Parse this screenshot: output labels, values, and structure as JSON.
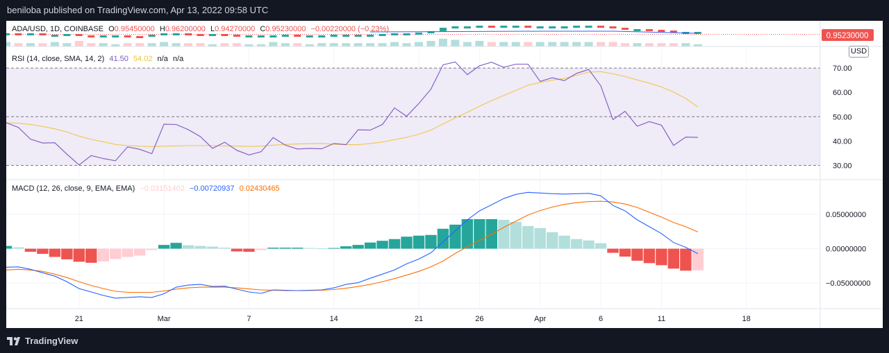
{
  "header": {
    "published": "beniloba published on TradingView.com, Apr 13, 2022 09:58 UTC"
  },
  "footer": {
    "brand": "TradingView"
  },
  "price_pane": {
    "legend": {
      "symbol": "ADA/USD, 1D, COINBASE",
      "open_label": "O",
      "open": "0.95450000",
      "high_label": "H",
      "high": "0.96200000",
      "low_label": "L",
      "low": "0.94270000",
      "close_label": "C",
      "close": "0.95230000",
      "change": "−0.00220000 (−0.23%)"
    },
    "currency": "USD",
    "price_tag": "0.95230000"
  },
  "rsi_pane": {
    "legend": {
      "title": "RSI (14, close, SMA, 14, 2)",
      "rsi": "41.50",
      "sma": "54.02",
      "na1": "n/a",
      "na2": "n/a"
    }
  },
  "macd_pane": {
    "legend": {
      "title": "MACD (12, 26, close, 9, EMA, EMA)",
      "hist": "−0.03151402",
      "macd": "−0.00720937",
      "signal": "0.02430465"
    }
  },
  "colors": {
    "up": "#26a69a",
    "up_light": "#b2dfdb",
    "down": "#ef5350",
    "down_light": "#ffcdd2",
    "rsi": "#7e57c2",
    "rsi_sma": "#f7d163",
    "rsi_band": "#efebf7",
    "macd": "#2962ff",
    "signal": "#ff6d00",
    "text": "#131722"
  },
  "chart_data": [
    {
      "type": "line",
      "title": "RSI (14, close, SMA, 14, 2)",
      "ylim": [
        25,
        78
      ],
      "y_ticks": [
        "70.00",
        "60.00",
        "50.00",
        "40.00",
        "30.00"
      ],
      "bands": [
        30,
        50,
        70
      ],
      "x_tick_labels": [
        "21",
        "Mar",
        "7",
        "14",
        "21",
        "26",
        "Apr",
        "6",
        "11",
        "18"
      ],
      "series": [
        {
          "name": "RSI",
          "values": [
            47.5,
            45.6,
            40.8,
            39.2,
            39.3,
            34.6,
            30.2,
            34.0,
            32.8,
            31.9,
            37.6,
            36.6,
            34.8,
            46.9,
            46.8,
            44.7,
            41.8,
            37.0,
            39.5,
            36.2,
            34.3,
            35.6,
            41.4,
            38.3,
            36.7,
            37.0,
            36.8,
            39.0,
            38.5,
            44.6,
            44.5,
            46.8,
            53.6,
            50.2,
            55.4,
            61.3,
            71.3,
            72.5,
            67.3,
            70.9,
            72.4,
            70.3,
            71.6,
            71.6,
            64.5,
            66.0,
            64.8,
            67.8,
            69.4,
            62.7,
            48.8,
            52.2,
            46.1,
            48.0,
            46.5,
            38.2,
            41.6,
            41.5
          ]
        },
        {
          "name": "SMA",
          "values": [
            47.5,
            47.3,
            46.8,
            46.0,
            45.0,
            43.7,
            42.0,
            40.7,
            39.7,
            38.6,
            38.1,
            37.9,
            37.7,
            37.9,
            38.0,
            38.1,
            38.1,
            38.1,
            38.0,
            37.9,
            37.8,
            37.9,
            38.3,
            38.6,
            38.8,
            38.9,
            39.0,
            38.7,
            38.5,
            38.5,
            39.0,
            39.6,
            40.6,
            41.5,
            42.8,
            44.5,
            47.0,
            49.5,
            51.8,
            54.3,
            56.6,
            58.7,
            60.8,
            62.9,
            64.1,
            65.0,
            65.7,
            67.0,
            68.3,
            68.5,
            67.6,
            66.5,
            65.1,
            63.8,
            62.2,
            60.1,
            57.5,
            54.0
          ]
        }
      ]
    },
    {
      "type": "bar",
      "title": "MACD (12, 26, close, 9, EMA, EMA)",
      "ylim": [
        -0.0862,
        0.0995
      ],
      "y_ticks": [
        "0.05000000",
        "0.00000000",
        "−0.05000000"
      ],
      "x_tick_labels": [
        "21",
        "Mar",
        "7",
        "14",
        "21",
        "26",
        "Apr",
        "6",
        "11",
        "18"
      ],
      "series": [
        {
          "name": "Histogram",
          "values": [
            0.004,
            0.002,
            -0.0045,
            -0.0075,
            -0.012,
            -0.0155,
            -0.019,
            -0.0205,
            -0.0185,
            -0.015,
            -0.012,
            -0.01,
            -0.002,
            0.0055,
            0.0085,
            0.005,
            0.004,
            0.003,
            0.0015,
            -0.004,
            -0.0045,
            -0.002,
            0.0015,
            0.0015,
            0.0015,
            0.001,
            0.0005,
            0.001,
            0.0035,
            0.0055,
            0.009,
            0.0115,
            0.014,
            0.0175,
            0.019,
            0.02,
            0.029,
            0.035,
            0.043,
            0.043,
            0.043,
            0.042,
            0.039,
            0.033,
            0.03,
            0.024,
            0.019,
            0.014,
            0.012,
            0.008,
            -0.006,
            -0.0115,
            -0.0175,
            -0.021,
            -0.024,
            -0.029,
            -0.032,
            -0.0315
          ]
        },
        {
          "name": "MACD",
          "values": [
            -0.027,
            -0.0265,
            -0.03,
            -0.035,
            -0.04,
            -0.048,
            -0.058,
            -0.063,
            -0.068,
            -0.072,
            -0.071,
            -0.07,
            -0.071,
            -0.0655,
            -0.056,
            -0.053,
            -0.052,
            -0.055,
            -0.0545,
            -0.059,
            -0.063,
            -0.065,
            -0.06,
            -0.0605,
            -0.061,
            -0.0605,
            -0.06,
            -0.057,
            -0.052,
            -0.0495,
            -0.043,
            -0.037,
            -0.031,
            -0.022,
            -0.015,
            -0.006,
            0.01,
            0.026,
            0.042,
            0.055,
            0.064,
            0.073,
            0.079,
            0.082,
            0.081,
            0.08,
            0.0795,
            0.08,
            0.0805,
            0.077,
            0.063,
            0.055,
            0.042,
            0.032,
            0.022,
            0.009,
            0.002,
            -0.0072
          ]
        },
        {
          "name": "Signal",
          "values": [
            -0.031,
            -0.03,
            -0.031,
            -0.033,
            -0.037,
            -0.042,
            -0.048,
            -0.0535,
            -0.058,
            -0.062,
            -0.0635,
            -0.0635,
            -0.0635,
            -0.0615,
            -0.059,
            -0.057,
            -0.056,
            -0.056,
            -0.056,
            -0.057,
            -0.0585,
            -0.06,
            -0.0605,
            -0.061,
            -0.061,
            -0.0608,
            -0.0605,
            -0.0595,
            -0.0575,
            -0.055,
            -0.052,
            -0.048,
            -0.0435,
            -0.0385,
            -0.033,
            -0.0265,
            -0.018,
            -0.007,
            0.003,
            0.012,
            0.021,
            0.031,
            0.04,
            0.049,
            0.0555,
            0.0605,
            0.0645,
            0.067,
            0.0685,
            0.069,
            0.068,
            0.065,
            0.06,
            0.053,
            0.046,
            0.038,
            0.032,
            0.0243
          ]
        }
      ]
    },
    {
      "type": "bar",
      "title": "ADA/USD, 1D, COINBASE",
      "note": "Candlestick strip (cropped); values are body offsets (open, close) relative to the pane baseline, plus a volume histogram",
      "ylim": [
        -10,
        30
      ],
      "series": [
        {
          "name": "open",
          "values": [
            12,
            12,
            11,
            12,
            9,
            10,
            11,
            9,
            8,
            9,
            9,
            8,
            7,
            10,
            12,
            12,
            11,
            10,
            11,
            10,
            9,
            9,
            9,
            9,
            10,
            9,
            9,
            9,
            10,
            10,
            10,
            10,
            11,
            12,
            12,
            13,
            15,
            20,
            22,
            22,
            23,
            22,
            23,
            23,
            22,
            22,
            22,
            22,
            23,
            23,
            22,
            20,
            18,
            18,
            17,
            16,
            14,
            14
          ]
        },
        {
          "name": "close",
          "values": [
            12,
            11,
            12,
            9,
            10,
            11,
            9,
            8,
            9,
            9,
            8,
            7,
            10,
            12,
            12,
            11,
            10,
            11,
            10,
            9,
            9,
            9,
            9,
            10,
            9,
            9,
            9,
            10,
            10,
            10,
            10,
            11,
            12,
            12,
            13,
            15,
            20,
            22,
            22,
            23,
            22,
            23,
            23,
            22,
            22,
            22,
            22,
            23,
            23,
            22,
            20,
            18,
            18,
            17,
            16,
            14,
            14,
            14
          ]
        },
        {
          "name": "volume",
          "values": [
            4,
            3,
            3,
            3,
            4,
            3,
            5,
            3,
            3,
            2,
            3,
            3,
            3,
            4,
            3,
            3,
            3,
            2,
            3,
            3,
            2,
            2,
            4,
            3,
            3,
            2,
            3,
            3,
            3,
            3,
            3,
            3,
            4,
            3,
            4,
            5,
            7,
            6,
            4,
            5,
            4,
            4,
            4,
            4,
            4,
            4,
            4,
            4,
            4,
            4,
            4,
            3,
            3,
            3,
            3,
            3,
            3,
            2
          ]
        }
      ]
    }
  ]
}
